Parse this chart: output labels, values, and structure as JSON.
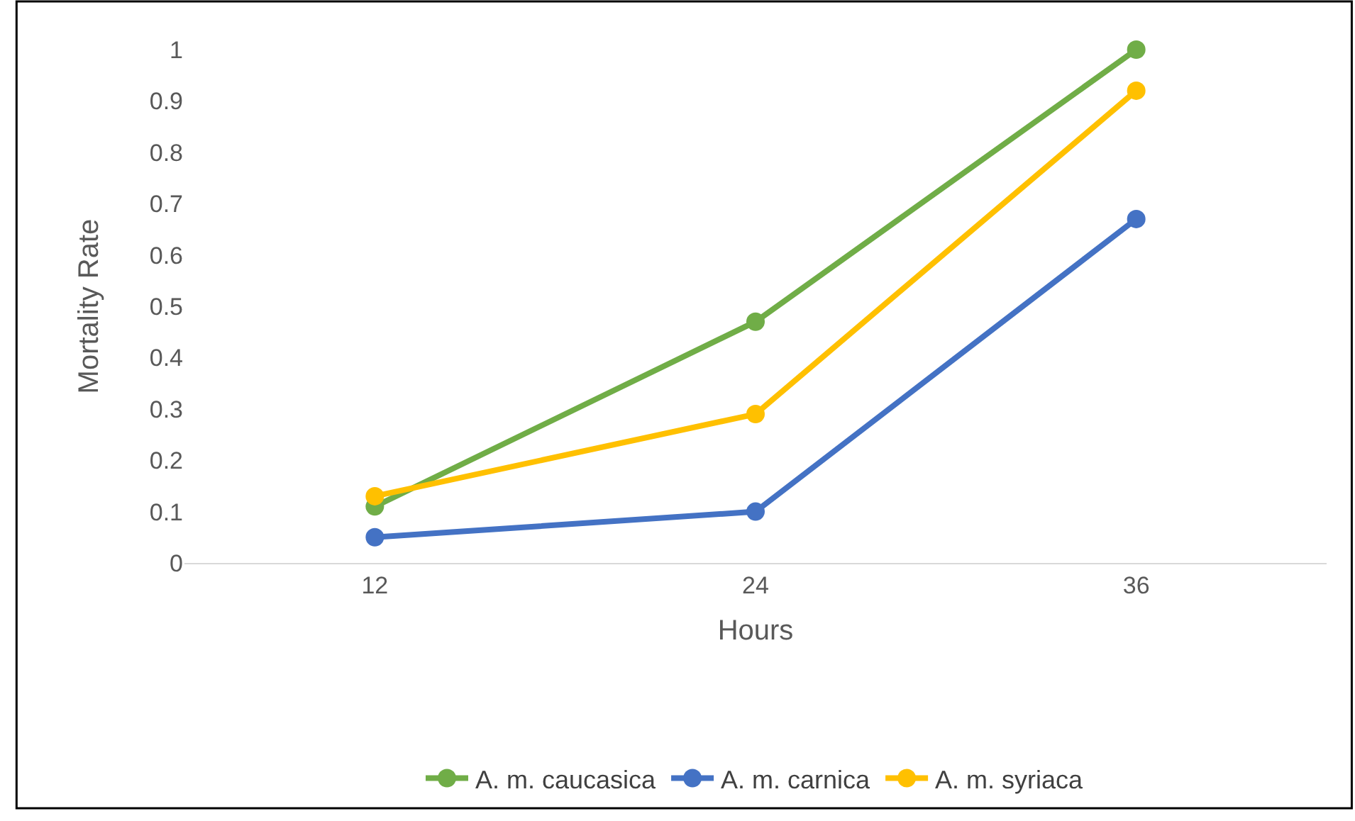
{
  "chart_data": {
    "type": "line",
    "xlabel": "Hours",
    "ylabel": "Mortality Rate",
    "categories": [
      "12",
      "24",
      "36"
    ],
    "series": [
      {
        "name": "A. m. caucasica",
        "color": "#70ad47",
        "values": [
          0.11,
          0.47,
          1.0
        ]
      },
      {
        "name": "A. m. carnica",
        "color": "#4472c4",
        "values": [
          0.05,
          0.1,
          0.67
        ]
      },
      {
        "name": "A. m. syriaca",
        "color": "#ffc000",
        "values": [
          0.13,
          0.29,
          0.92
        ]
      }
    ],
    "ylim": [
      0,
      1
    ],
    "yticks": [
      0,
      0.1,
      0.2,
      0.3,
      0.4,
      0.5,
      0.6,
      0.7,
      0.8,
      0.9,
      1
    ],
    "grid": false,
    "legend": "bottom",
    "marker": "circle",
    "line_style": "solid"
  }
}
